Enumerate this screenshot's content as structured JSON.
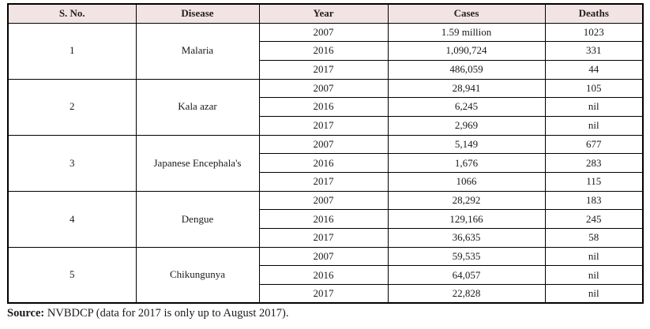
{
  "table": {
    "headers": [
      "S. No.",
      "Disease",
      "Year",
      "Cases",
      "Deaths"
    ],
    "groups": [
      {
        "sno": "1",
        "disease": "Malaria",
        "rows": [
          {
            "year": "2007",
            "cases": "1.59 million",
            "deaths": "1023"
          },
          {
            "year": "2016",
            "cases": "1,090,724",
            "deaths": "331"
          },
          {
            "year": "2017",
            "cases": "486,059",
            "deaths": "44"
          }
        ]
      },
      {
        "sno": "2",
        "disease": "Kala azar",
        "rows": [
          {
            "year": "2007",
            "cases": "28,941",
            "deaths": "105"
          },
          {
            "year": "2016",
            "cases": "6,245",
            "deaths": "nil"
          },
          {
            "year": "2017",
            "cases": "2,969",
            "deaths": "nil"
          }
        ]
      },
      {
        "sno": "3",
        "disease": "Japanese Encephala's",
        "rows": [
          {
            "year": "2007",
            "cases": "5,149",
            "deaths": "677"
          },
          {
            "year": "2016",
            "cases": "1,676",
            "deaths": "283"
          },
          {
            "year": "2017",
            "cases": "1066",
            "deaths": "115"
          }
        ]
      },
      {
        "sno": "4",
        "disease": "Dengue",
        "rows": [
          {
            "year": "2007",
            "cases": "28,292",
            "deaths": "183"
          },
          {
            "year": "2016",
            "cases": "129,166",
            "deaths": "245"
          },
          {
            "year": "2017",
            "cases": "36,635",
            "deaths": "58"
          }
        ]
      },
      {
        "sno": "5",
        "disease": "Chikungunya",
        "rows": [
          {
            "year": "2007",
            "cases": "59,535",
            "deaths": "nil"
          },
          {
            "year": "2016",
            "cases": "64,057",
            "deaths": "nil"
          },
          {
            "year": "2017",
            "cases": "22,828",
            "deaths": "nil"
          }
        ]
      }
    ]
  },
  "footer": {
    "source_label": "Source:",
    "source_text": " NVBDCP (data for 2017 is only up to August 2017)."
  },
  "colors": {
    "header_bg": "#f2e4e4",
    "header_text": "#231f20",
    "border": "#000000"
  }
}
